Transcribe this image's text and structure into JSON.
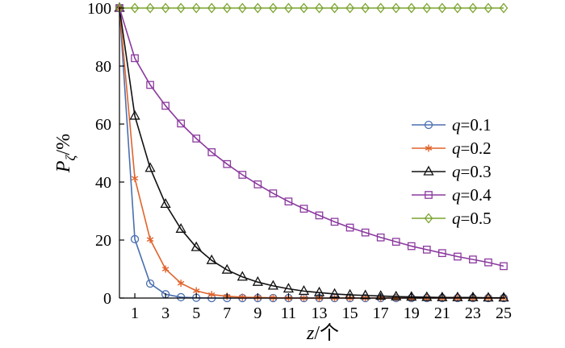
{
  "chart_data": {
    "type": "line",
    "xlabel": {
      "var": "z",
      "unit": "个"
    },
    "ylabel": {
      "var": "P",
      "sub": "ζ",
      "unit": "%"
    },
    "x": [
      0,
      1,
      2,
      3,
      4,
      5,
      6,
      7,
      8,
      9,
      10,
      11,
      12,
      13,
      14,
      15,
      16,
      17,
      18,
      19,
      20,
      21,
      22,
      23,
      24,
      25
    ],
    "xlim": [
      0,
      25
    ],
    "ylim": [
      0,
      100
    ],
    "xticks": [
      1,
      3,
      5,
      7,
      9,
      11,
      13,
      15,
      17,
      19,
      21,
      23,
      25
    ],
    "yticks": [
      0,
      20,
      40,
      60,
      80,
      100
    ],
    "grid": false,
    "legend_position": "right",
    "legend_var": "q",
    "series": [
      {
        "name": "q=0.1",
        "q_value": "0.1",
        "color": "#4a6fb0",
        "marker": "circle",
        "values": [
          100,
          20.3,
          5.0,
          1.3,
          0.3,
          0.1,
          0,
          0,
          0,
          0,
          0,
          0,
          0,
          0,
          0,
          0,
          0,
          0,
          0,
          0,
          0,
          0,
          0,
          0,
          0,
          0
        ]
      },
      {
        "name": "q=0.2",
        "q_value": "0.2",
        "color": "#e0642c",
        "marker": "star",
        "values": [
          100,
          41.3,
          20.2,
          10.0,
          5.1,
          2.5,
          1.2,
          0.6,
          0.3,
          0.2,
          0.1,
          0,
          0,
          0,
          0,
          0,
          0,
          0,
          0,
          0,
          0,
          0,
          0,
          0,
          0,
          0
        ]
      },
      {
        "name": "q=0.3",
        "q_value": "0.3",
        "color": "#111111",
        "marker": "triangle",
        "values": [
          100,
          62.8,
          44.8,
          32.4,
          23.8,
          17.5,
          13.0,
          9.7,
          7.3,
          5.5,
          4.2,
          3.2,
          2.4,
          1.9,
          1.4,
          1.1,
          0.9,
          0.7,
          0.5,
          0.4,
          0.3,
          0.2,
          0.2,
          0.2,
          0.1,
          0.1
        ]
      },
      {
        "name": "q=0.4",
        "q_value": "0.4",
        "color": "#8b3a9e",
        "marker": "square",
        "values": [
          100,
          82.7,
          73.5,
          66.3,
          60.2,
          55.0,
          50.3,
          46.2,
          42.5,
          39.2,
          36.1,
          33.3,
          30.8,
          28.5,
          26.3,
          24.3,
          22.6,
          20.9,
          19.4,
          17.9,
          16.7,
          15.5,
          14.3,
          13.3,
          12.3,
          11.0
        ]
      },
      {
        "name": "q=0.5",
        "q_value": "0.5",
        "color": "#7aa32e",
        "marker": "diamond",
        "values": [
          100,
          100,
          100,
          100,
          100,
          100,
          100,
          100,
          100,
          100,
          100,
          100,
          100,
          100,
          100,
          100,
          100,
          100,
          100,
          100,
          100,
          100,
          100,
          100,
          100,
          100
        ]
      }
    ]
  }
}
